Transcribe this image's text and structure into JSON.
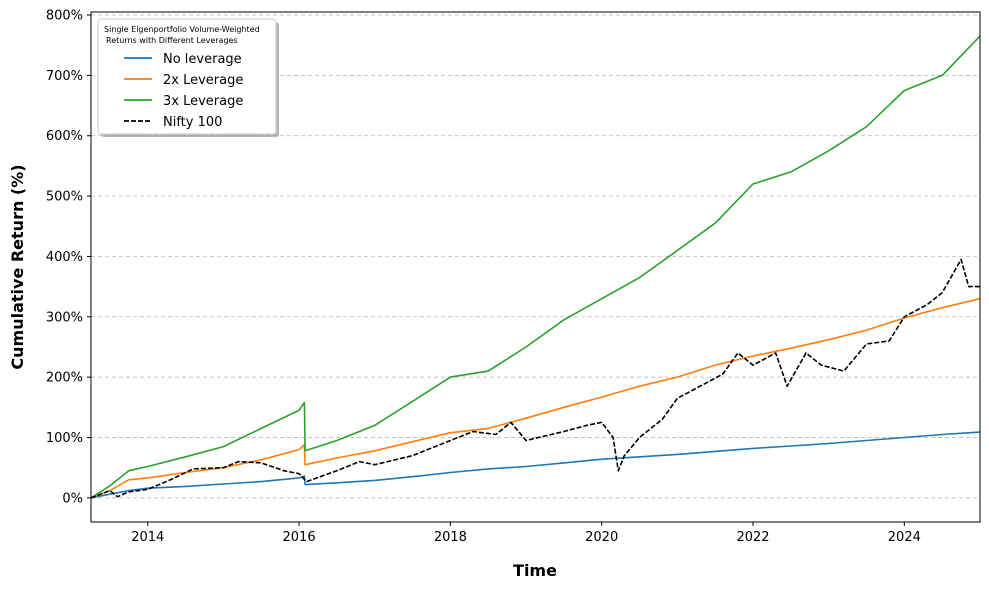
{
  "chart_data": {
    "type": "line",
    "xlabel": "Time",
    "ylabel": "Cumulative Return (%)",
    "xlim": [
      2013.25,
      2025.0
    ],
    "ylim": [
      -40,
      805
    ],
    "x_ticks": [
      2014,
      2016,
      2018,
      2020,
      2022,
      2024
    ],
    "x_tick_labels": [
      "2014",
      "2016",
      "2018",
      "2020",
      "2022",
      "2024"
    ],
    "y_ticks": [
      0,
      100,
      200,
      300,
      400,
      500,
      600,
      700,
      800
    ],
    "y_tick_labels": [
      "0%",
      "100%",
      "200%",
      "300%",
      "400%",
      "500%",
      "600%",
      "700%",
      "800%"
    ],
    "grid": "horizontal-dashed",
    "legend": {
      "placement": "top-left",
      "title_lines": [
        "Single Eigenportfolio Volume-Weighted",
        "Returns with Different Leverages"
      ]
    },
    "series": [
      {
        "name": "No leverage",
        "color": "#1f77b4",
        "style": "solid",
        "x": [
          2013.25,
          2013.5,
          2013.75,
          2014.0,
          2014.5,
          2015.0,
          2015.5,
          2016.0,
          2016.07,
          2016.08,
          2016.5,
          2017.0,
          2017.5,
          2018.0,
          2018.5,
          2019.0,
          2019.5,
          2020.0,
          2020.5,
          2021.0,
          2021.5,
          2022.0,
          2022.5,
          2023.0,
          2023.5,
          2024.0,
          2024.5,
          2025.0
        ],
        "y": [
          0,
          6,
          12,
          16,
          19,
          23,
          27,
          33,
          36,
          22,
          25,
          29,
          35,
          42,
          48,
          52,
          58,
          64,
          68,
          72,
          77,
          82,
          86,
          90,
          95,
          100,
          105,
          109
        ]
      },
      {
        "name": "2x Leverage",
        "color": "#ff7f0e",
        "style": "solid",
        "x": [
          2013.25,
          2013.5,
          2013.75,
          2014.0,
          2014.5,
          2015.0,
          2015.5,
          2016.0,
          2016.07,
          2016.08,
          2016.5,
          2017.0,
          2017.5,
          2018.0,
          2018.5,
          2019.0,
          2019.5,
          2020.0,
          2020.5,
          2021.0,
          2021.5,
          2022.0,
          2022.5,
          2023.0,
          2023.5,
          2024.0,
          2024.5,
          2025.0
        ],
        "y": [
          0,
          12,
          30,
          33,
          42,
          50,
          63,
          80,
          88,
          55,
          66,
          78,
          93,
          108,
          115,
          132,
          150,
          167,
          185,
          200,
          220,
          235,
          248,
          262,
          278,
          298,
          315,
          330
        ]
      },
      {
        "name": "3x Leverage",
        "color": "#2ca02c",
        "style": "solid",
        "x": [
          2013.25,
          2013.5,
          2013.75,
          2014.0,
          2014.5,
          2015.0,
          2015.5,
          2016.0,
          2016.07,
          2016.08,
          2016.5,
          2017.0,
          2017.5,
          2018.0,
          2018.5,
          2019.0,
          2019.5,
          2020.0,
          2020.5,
          2021.0,
          2021.5,
          2022.0,
          2022.5,
          2023.0,
          2023.5,
          2024.0,
          2024.5,
          2025.0
        ],
        "y": [
          0,
          20,
          45,
          52,
          68,
          85,
          115,
          145,
          158,
          78,
          95,
          120,
          160,
          200,
          210,
          250,
          295,
          330,
          365,
          410,
          455,
          520,
          540,
          575,
          615,
          675,
          700,
          765
        ]
      },
      {
        "name": "Nifty 100",
        "color": "#000000",
        "style": "dashed",
        "x": [
          2013.25,
          2013.5,
          2013.6,
          2013.75,
          2014.0,
          2014.3,
          2014.6,
          2015.0,
          2015.2,
          2015.5,
          2015.8,
          2016.0,
          2016.1,
          2016.5,
          2016.8,
          2017.0,
          2017.5,
          2018.0,
          2018.3,
          2018.6,
          2018.8,
          2019.0,
          2019.5,
          2019.8,
          2020.0,
          2020.15,
          2020.22,
          2020.3,
          2020.5,
          2020.8,
          2021.0,
          2021.3,
          2021.6,
          2021.8,
          2022.0,
          2022.3,
          2022.45,
          2022.7,
          2022.9,
          2023.2,
          2023.5,
          2023.8,
          2024.0,
          2024.3,
          2024.5,
          2024.75,
          2024.85,
          2025.0
        ],
        "y": [
          0,
          12,
          2,
          10,
          14,
          30,
          48,
          50,
          60,
          58,
          45,
          40,
          27,
          45,
          60,
          55,
          70,
          95,
          110,
          105,
          125,
          95,
          110,
          120,
          125,
          100,
          45,
          70,
          100,
          130,
          165,
          185,
          205,
          240,
          220,
          240,
          185,
          240,
          220,
          210,
          255,
          260,
          300,
          320,
          340,
          395,
          350,
          350
        ]
      }
    ]
  }
}
